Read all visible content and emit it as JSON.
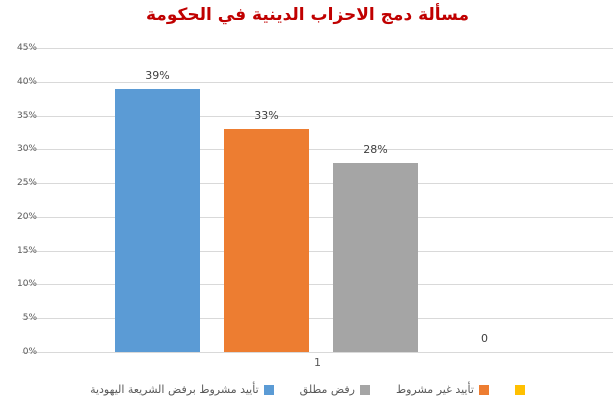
{
  "chart_data": {
    "type": "bar",
    "title": "مسألة دمج الاحزاب الدينية في الحكومة",
    "title_color": "#C00000",
    "categories": [
      "1"
    ],
    "series": [
      {
        "name": "تأييد مشروط برفض الشريعة اليهودية",
        "color": "#5B9BD5",
        "values": [
          39
        ],
        "data_label": "39%"
      },
      {
        "name": "تأييد غير مشروط",
        "color": "#ED7D31",
        "values": [
          33
        ],
        "data_label": "33%"
      },
      {
        "name": "رفض مطلق",
        "color": "#A5A5A5",
        "values": [
          28
        ],
        "data_label": "28%"
      },
      {
        "name": "",
        "color": "#FFC000",
        "values": [
          0
        ],
        "data_label": "0"
      }
    ],
    "ylim": [
      0,
      45
    ],
    "yticks": [
      45,
      40,
      35,
      30,
      25,
      20,
      15,
      10,
      5,
      0
    ],
    "ytick_labels": [
      "45%",
      "40%",
      "35%",
      "30%",
      "25%",
      "20%",
      "15%",
      "10%",
      "5%",
      "0%"
    ],
    "grid": true,
    "gridline_color": "#D9D9D9",
    "axis_text_color": "#595959",
    "data_label_color": "#404040",
    "legend_position": "bottom",
    "legend_items": [
      {
        "label": "تأييد مشروط برفض الشريعة اليهودية",
        "color": "#5B9BD5"
      },
      {
        "label": "رفض مطلق",
        "color": "#A5A5A5"
      },
      {
        "label": "تأييد غير مشروط",
        "color": "#ED7D31"
      },
      {
        "label": "",
        "color": "#FFC000"
      }
    ]
  }
}
